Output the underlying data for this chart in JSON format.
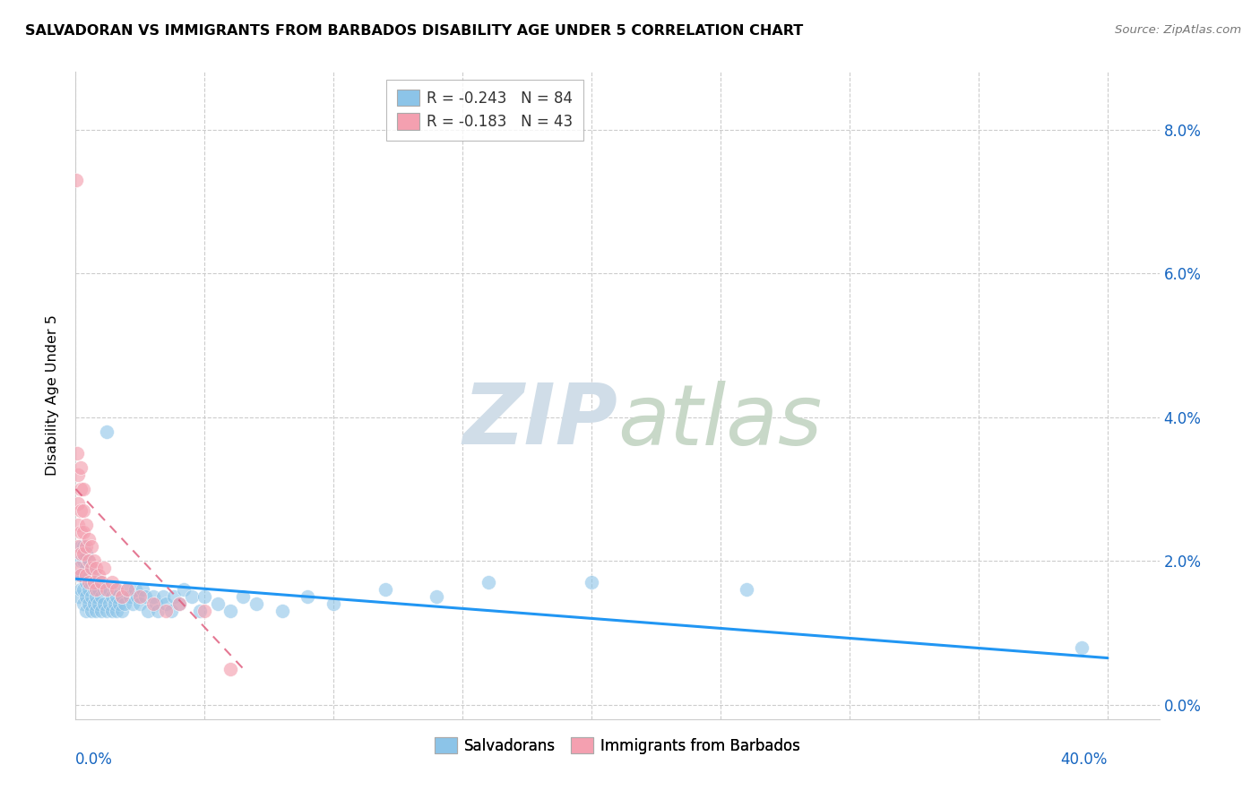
{
  "title": "SALVADORAN VS IMMIGRANTS FROM BARBADOS DISABILITY AGE UNDER 5 CORRELATION CHART",
  "source": "Source: ZipAtlas.com",
  "ylabel": "Disability Age Under 5",
  "xlim": [
    0.0,
    0.42
  ],
  "ylim": [
    -0.002,
    0.088
  ],
  "ytick_vals": [
    0.0,
    0.02,
    0.04,
    0.06,
    0.08
  ],
  "ytick_labels": [
    "0.0%",
    "2.0%",
    "4.0%",
    "6.0%",
    "8.0%"
  ],
  "xtick_vals": [
    0.0,
    0.05,
    0.1,
    0.15,
    0.2,
    0.25,
    0.3,
    0.35,
    0.4
  ],
  "legend1_r": "R = -0.243",
  "legend1_n": "N = 84",
  "legend2_r": "R = -0.183",
  "legend2_n": "N = 43",
  "blue_color": "#8cc4e8",
  "pink_color": "#f4a0b0",
  "trendline_blue_color": "#2196F3",
  "trendline_pink_color": "#e06080",
  "blue_scatter_x": [
    0.001,
    0.001,
    0.002,
    0.002,
    0.002,
    0.002,
    0.003,
    0.003,
    0.003,
    0.003,
    0.003,
    0.004,
    0.004,
    0.004,
    0.004,
    0.004,
    0.005,
    0.005,
    0.005,
    0.005,
    0.006,
    0.006,
    0.006,
    0.006,
    0.007,
    0.007,
    0.007,
    0.008,
    0.008,
    0.009,
    0.009,
    0.01,
    0.01,
    0.01,
    0.011,
    0.011,
    0.012,
    0.012,
    0.013,
    0.013,
    0.014,
    0.014,
    0.015,
    0.015,
    0.016,
    0.016,
    0.017,
    0.018,
    0.018,
    0.019,
    0.02,
    0.021,
    0.022,
    0.023,
    0.024,
    0.025,
    0.026,
    0.027,
    0.028,
    0.03,
    0.031,
    0.032,
    0.034,
    0.035,
    0.037,
    0.038,
    0.04,
    0.042,
    0.045,
    0.048,
    0.05,
    0.055,
    0.06,
    0.065,
    0.07,
    0.08,
    0.09,
    0.1,
    0.12,
    0.14,
    0.16,
    0.2,
    0.26,
    0.39
  ],
  "blue_scatter_y": [
    0.015,
    0.018,
    0.016,
    0.018,
    0.02,
    0.022,
    0.014,
    0.016,
    0.018,
    0.02,
    0.022,
    0.013,
    0.015,
    0.017,
    0.019,
    0.021,
    0.014,
    0.016,
    0.018,
    0.02,
    0.013,
    0.015,
    0.017,
    0.019,
    0.014,
    0.016,
    0.018,
    0.013,
    0.015,
    0.014,
    0.016,
    0.013,
    0.015,
    0.017,
    0.014,
    0.016,
    0.013,
    0.038,
    0.014,
    0.016,
    0.013,
    0.015,
    0.014,
    0.016,
    0.013,
    0.015,
    0.014,
    0.013,
    0.015,
    0.014,
    0.016,
    0.015,
    0.014,
    0.016,
    0.015,
    0.014,
    0.016,
    0.015,
    0.013,
    0.015,
    0.014,
    0.013,
    0.015,
    0.014,
    0.013,
    0.015,
    0.014,
    0.016,
    0.015,
    0.013,
    0.015,
    0.014,
    0.013,
    0.015,
    0.014,
    0.013,
    0.015,
    0.014,
    0.016,
    0.015,
    0.017,
    0.017,
    0.016,
    0.008
  ],
  "pink_scatter_x": [
    0.0002,
    0.0005,
    0.001,
    0.001,
    0.001,
    0.001,
    0.001,
    0.002,
    0.002,
    0.002,
    0.002,
    0.002,
    0.002,
    0.003,
    0.003,
    0.003,
    0.003,
    0.004,
    0.004,
    0.004,
    0.005,
    0.005,
    0.005,
    0.006,
    0.006,
    0.007,
    0.007,
    0.008,
    0.008,
    0.009,
    0.01,
    0.011,
    0.012,
    0.014,
    0.016,
    0.018,
    0.02,
    0.025,
    0.03,
    0.035,
    0.04,
    0.05,
    0.06
  ],
  "pink_scatter_y": [
    0.073,
    0.035,
    0.032,
    0.028,
    0.025,
    0.022,
    0.019,
    0.033,
    0.03,
    0.027,
    0.024,
    0.021,
    0.018,
    0.03,
    0.027,
    0.024,
    0.021,
    0.025,
    0.022,
    0.018,
    0.023,
    0.02,
    0.017,
    0.022,
    0.019,
    0.02,
    0.017,
    0.019,
    0.016,
    0.018,
    0.017,
    0.019,
    0.016,
    0.017,
    0.016,
    0.015,
    0.016,
    0.015,
    0.014,
    0.013,
    0.014,
    0.013,
    0.005
  ],
  "blue_trend_x0": 0.0,
  "blue_trend_x1": 0.4,
  "blue_trend_y0": 0.0175,
  "blue_trend_y1": 0.0065,
  "pink_trend_x0": 0.0,
  "pink_trend_x1": 0.065,
  "pink_trend_y0": 0.03,
  "pink_trend_y1": 0.005
}
